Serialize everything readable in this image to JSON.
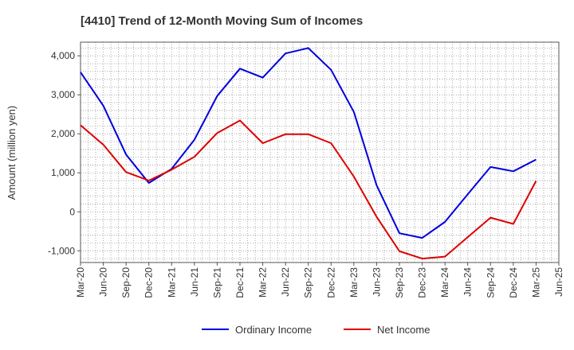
{
  "chart_data": {
    "type": "line",
    "title": "[4410]  Trend of 12-Month Moving Sum of Incomes",
    "xlabel": "",
    "ylabel": "Amount (million yen)",
    "ylim": [
      -1300,
      4350
    ],
    "yticks": [
      -1000,
      0,
      1000,
      2000,
      3000,
      4000
    ],
    "ytick_labels": [
      "-1,000",
      "0",
      "1,000",
      "2,000",
      "3,000",
      "4,000"
    ],
    "x": [
      "Mar-20",
      "Jun-20",
      "Sep-20",
      "Dec-20",
      "Mar-21",
      "Jun-21",
      "Sep-21",
      "Dec-21",
      "Mar-22",
      "Jun-22",
      "Sep-22",
      "Dec-22",
      "Mar-23",
      "Jun-23",
      "Sep-23",
      "Dec-23",
      "Mar-24",
      "Jun-24",
      "Sep-24",
      "Dec-24",
      "Mar-25",
      "Jun-25"
    ],
    "grid": true,
    "legend_position": "bottom",
    "series": [
      {
        "name": "Ordinary Income",
        "color": "#0000dd",
        "values": [
          3580,
          2720,
          1470,
          740,
          1100,
          1850,
          2970,
          3670,
          3440,
          4060,
          4200,
          3640,
          2560,
          680,
          -550,
          -670,
          -260,
          450,
          1150,
          1040,
          1340,
          null
        ]
      },
      {
        "name": "Net Income",
        "color": "#dd0000",
        "values": [
          2220,
          1720,
          1020,
          800,
          1080,
          1410,
          2020,
          2340,
          1760,
          1990,
          1990,
          1760,
          900,
          -130,
          -1010,
          -1200,
          -1150,
          -650,
          -150,
          -310,
          790,
          null
        ]
      }
    ]
  }
}
